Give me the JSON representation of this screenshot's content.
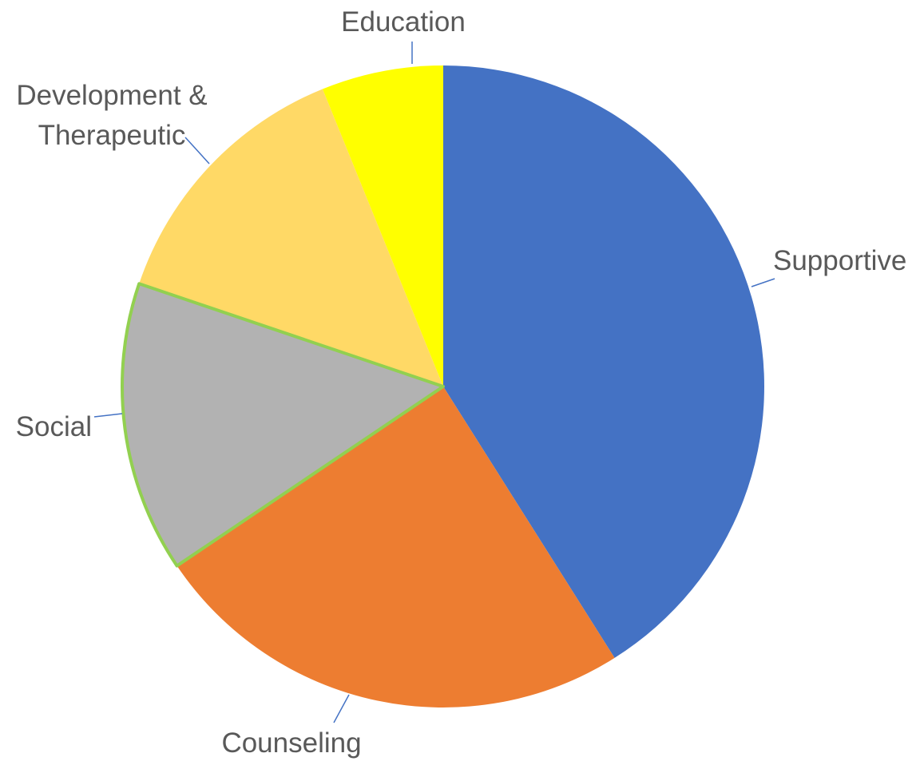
{
  "chart_data": {
    "type": "pie",
    "title": "",
    "start_angle_deg": 0,
    "direction": "clockwise",
    "slices": [
      {
        "label": "Supportive",
        "value": 43.5,
        "color": "#4472c4"
      },
      {
        "label": "Counseling",
        "value": 26.0,
        "color": "#ed7d31"
      },
      {
        "label": "Social",
        "value": 15.5,
        "color": "#b2b2b2",
        "outline": "#92d050"
      },
      {
        "label": "Development & Therapeutic",
        "value": 14.5,
        "color": "#ffd966"
      },
      {
        "label": "Education",
        "value": 6.5,
        "color": "#ffff00"
      }
    ]
  }
}
